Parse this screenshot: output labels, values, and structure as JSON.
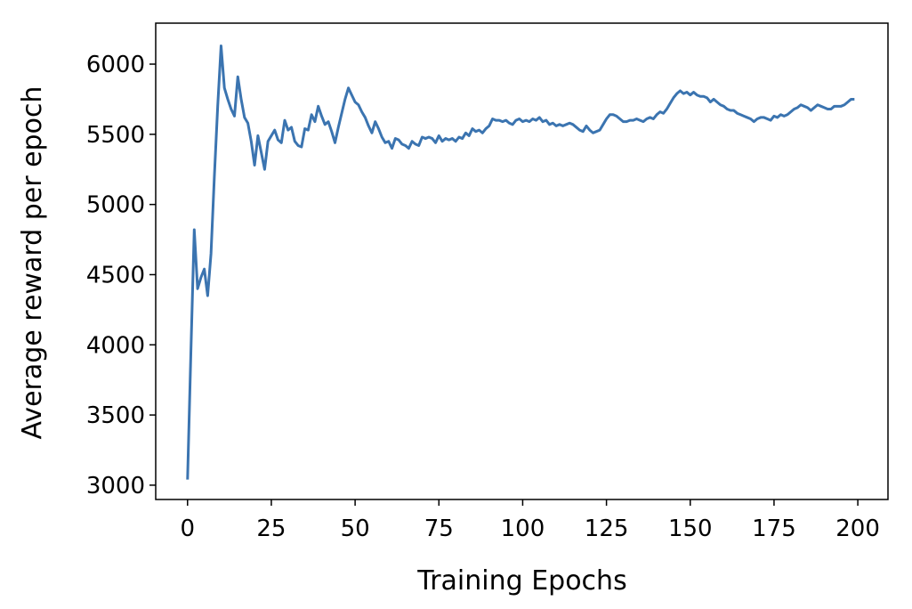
{
  "chart_data": {
    "type": "line",
    "xlabel": "Training Epochs",
    "ylabel": "Average reward per epoch",
    "color": "#3b74b0",
    "x": [
      0,
      1,
      2,
      3,
      4,
      5,
      6,
      7,
      8,
      9,
      10,
      11,
      12,
      13,
      14,
      15,
      16,
      17,
      18,
      19,
      20,
      21,
      22,
      23,
      24,
      25,
      26,
      27,
      28,
      29,
      30,
      31,
      32,
      33,
      34,
      35,
      36,
      37,
      38,
      39,
      40,
      41,
      42,
      43,
      44,
      45,
      46,
      47,
      48,
      49,
      50,
      51,
      52,
      53,
      54,
      55,
      56,
      57,
      58,
      59,
      60,
      61,
      62,
      63,
      64,
      65,
      66,
      67,
      68,
      69,
      70,
      71,
      72,
      73,
      74,
      75,
      76,
      77,
      78,
      79,
      80,
      81,
      82,
      83,
      84,
      85,
      86,
      87,
      88,
      89,
      90,
      91,
      92,
      93,
      94,
      95,
      96,
      97,
      98,
      99,
      100,
      101,
      102,
      103,
      104,
      105,
      106,
      107,
      108,
      109,
      110,
      111,
      112,
      113,
      114,
      115,
      116,
      117,
      118,
      119,
      120,
      121,
      122,
      123,
      124,
      125,
      126,
      127,
      128,
      129,
      130,
      131,
      132,
      133,
      134,
      135,
      136,
      137,
      138,
      139,
      140,
      141,
      142,
      143,
      144,
      145,
      146,
      147,
      148,
      149,
      150,
      151,
      152,
      153,
      154,
      155,
      156,
      157,
      158,
      159,
      160,
      161,
      162,
      163,
      164,
      165,
      166,
      167,
      168,
      169,
      170,
      171,
      172,
      173,
      174,
      175,
      176,
      177,
      178,
      179,
      180,
      181,
      182,
      183,
      184,
      185,
      186,
      187,
      188,
      189,
      190,
      191,
      192,
      193,
      194,
      195,
      196,
      197,
      198,
      199
    ],
    "values": [
      3040,
      3950,
      4820,
      4400,
      4480,
      4540,
      4350,
      4650,
      5200,
      5700,
      6130,
      5830,
      5750,
      5680,
      5630,
      5910,
      5750,
      5620,
      5580,
      5450,
      5280,
      5490,
      5370,
      5250,
      5450,
      5490,
      5530,
      5460,
      5440,
      5600,
      5530,
      5550,
      5450,
      5420,
      5410,
      5540,
      5530,
      5640,
      5590,
      5700,
      5630,
      5570,
      5590,
      5520,
      5440,
      5550,
      5650,
      5750,
      5830,
      5780,
      5730,
      5710,
      5660,
      5620,
      5560,
      5510,
      5590,
      5540,
      5480,
      5440,
      5450,
      5400,
      5470,
      5460,
      5430,
      5420,
      5400,
      5450,
      5430,
      5420,
      5480,
      5470,
      5480,
      5470,
      5440,
      5490,
      5450,
      5470,
      5460,
      5470,
      5450,
      5480,
      5470,
      5510,
      5490,
      5540,
      5520,
      5530,
      5510,
      5540,
      5560,
      5610,
      5600,
      5600,
      5590,
      5600,
      5580,
      5570,
      5600,
      5610,
      5590,
      5600,
      5590,
      5610,
      5600,
      5620,
      5590,
      5600,
      5570,
      5580,
      5560,
      5570,
      5560,
      5570,
      5580,
      5570,
      5550,
      5530,
      5520,
      5560,
      5530,
      5510,
      5520,
      5530,
      5570,
      5610,
      5640,
      5640,
      5630,
      5610,
      5590,
      5590,
      5600,
      5600,
      5610,
      5600,
      5590,
      5610,
      5620,
      5610,
      5640,
      5660,
      5650,
      5680,
      5720,
      5760,
      5790,
      5810,
      5790,
      5800,
      5780,
      5800,
      5780,
      5770,
      5770,
      5760,
      5730,
      5750,
      5730,
      5710,
      5700,
      5680,
      5670,
      5670,
      5650,
      5640,
      5630,
      5620,
      5610,
      5590,
      5610,
      5620,
      5620,
      5610,
      5600,
      5630,
      5620,
      5640,
      5630,
      5640,
      5660,
      5680,
      5690,
      5710,
      5700,
      5690,
      5670,
      5690,
      5710,
      5700,
      5690,
      5680,
      5680,
      5700,
      5700,
      5700,
      5710,
      5730,
      5750,
      5750
    ],
    "xlim": [
      -9.5,
      209
    ],
    "ylim": [
      2898,
      6292
    ],
    "xticks": [
      0,
      25,
      50,
      75,
      100,
      125,
      150,
      175,
      200
    ],
    "yticks": [
      3000,
      3500,
      4000,
      4500,
      5000,
      5500,
      6000
    ]
  }
}
